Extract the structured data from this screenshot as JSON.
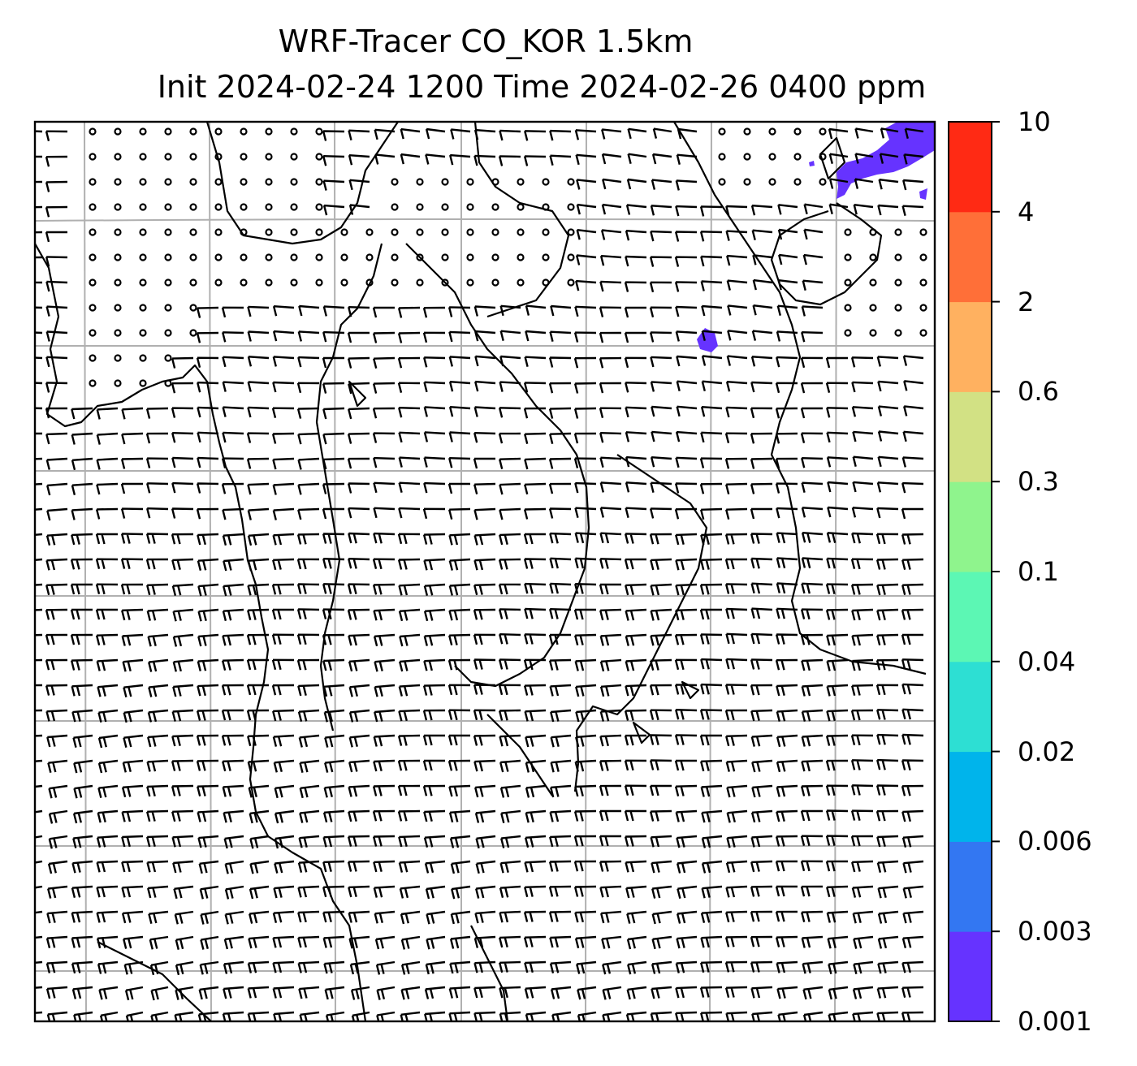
{
  "figure": {
    "title_line1": "WRF-Tracer CO_KOR 1.5km",
    "title_line2": "Init 2024-02-24 1200 Time 2024-02-26 0400 ppm"
  },
  "colorbar": {
    "levels": [
      "0.001",
      "0.003",
      "0.006",
      "0.02",
      "0.04",
      "0.1",
      "0.3",
      "0.6",
      "2",
      "4",
      "10"
    ],
    "colors": [
      "#6633ff",
      "#3377f2",
      "#00b4eb",
      "#2ddfd3",
      "#5cf7b4",
      "#8ff48d",
      "#d2e184",
      "#ffb160",
      "#ff6f38",
      "#ff2a14"
    ]
  },
  "map": {
    "background": "#ffffff",
    "gridline_color": "#b0b0b0",
    "tracer_color": "#6633ff",
    "barb_color": "#000000"
  }
}
